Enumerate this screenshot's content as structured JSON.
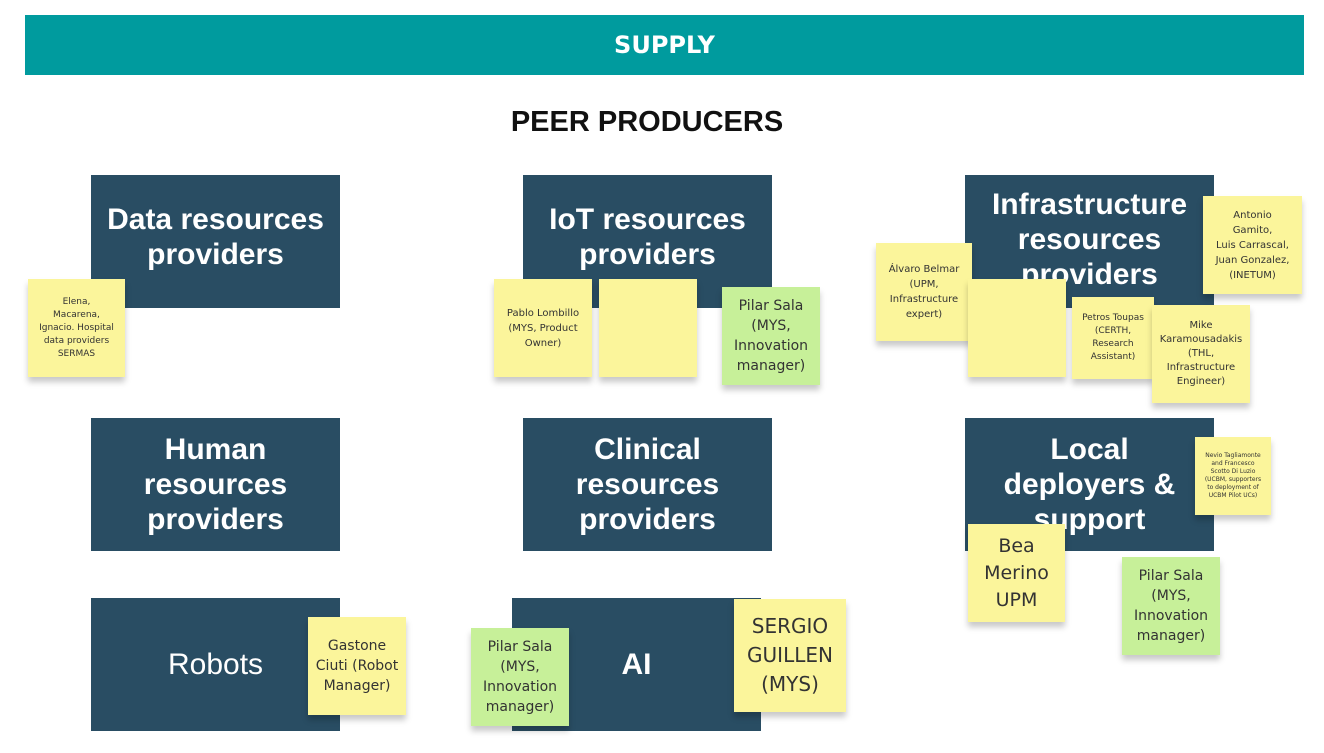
{
  "header": {
    "title": "SUPPLY"
  },
  "section": {
    "title": "PEER PRODUCERS"
  },
  "boxes": {
    "data": "Data resources\nproviders",
    "iot": "IoT resources\nproviders",
    "infrastructure": "Infrastructure\nresources\nproviders",
    "human": "Human\nresources\nproviders",
    "clinical": "Clinical\nresources\nproviders",
    "local": "Local\ndeployers &\nsupport",
    "robots": "Robots",
    "ai": "AI"
  },
  "notes": {
    "elena": "Elena,\nMacarena,\nIgnacio. Hospital\ndata providers\nSERMAS",
    "pablo": "Pablo Lombillo\n(MYS, Product\nOwner)",
    "blank_iot": "",
    "pilar_iot": "Pilar Sala\n(MYS,\nInnovation\nmanager)",
    "alvaro": "Álvaro Belmar\n(UPM,\nInfrastructure\nexpert)",
    "blank_infra": "",
    "petros": "Petros Toupas\n(CERTH,\nResearch\nAssistant)",
    "mike": "Mike\nKaramousadakis\n(THL,\nInfrastructure\nEngineer)",
    "antonio": "Antonio\nGamito,\nLuis Carrascal,\nJuan Gonzalez,\n(INETUM)",
    "nevio": "Nevio Tagliamonte\nand Francesco\nScotto Di Luzio\n(UCBM, supporters\nto deployment of\nUCBM Pilot UCs)",
    "bea": "Bea\nMerino\nUPM",
    "pilar_local": "Pilar Sala\n(MYS,\nInnovation\nmanager)",
    "gastone": "Gastone\nCiuti (Robot\nManager)",
    "pilar_ai": "Pilar Sala\n(MYS,\nInnovation\nmanager)",
    "sergio": "SERGIO\nGUILLEN\n(MYS)"
  },
  "colors": {
    "banner": "#009b9e",
    "box": "#294d63",
    "note_yellow": "#fbf59b",
    "note_green": "#c7f099"
  }
}
